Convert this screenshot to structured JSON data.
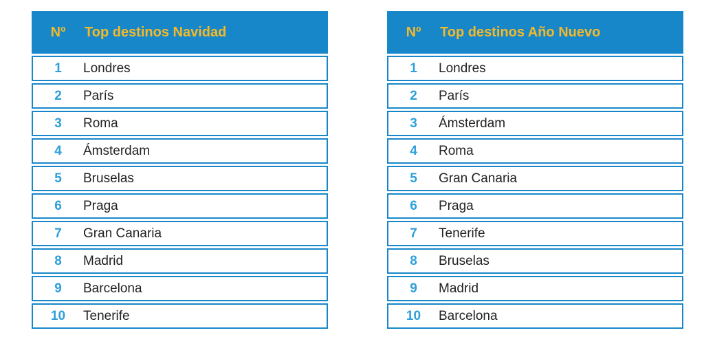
{
  "colors": {
    "header_background": "#1787c9",
    "header_text": "#f5b928",
    "row_border": "#1787c9",
    "rank_number": "#2d9fda",
    "city_text": "#222222",
    "page_background": "#ffffff"
  },
  "tables": [
    {
      "header": {
        "rank": "Nº",
        "title": "Top destinos Navidad"
      },
      "rows": [
        {
          "rank": "1",
          "city": "Londres"
        },
        {
          "rank": "2",
          "city": "París"
        },
        {
          "rank": "3",
          "city": "Roma"
        },
        {
          "rank": "4",
          "city": "Ámsterdam"
        },
        {
          "rank": "5",
          "city": "Bruselas"
        },
        {
          "rank": "6",
          "city": "Praga"
        },
        {
          "rank": "7",
          "city": "Gran Canaria"
        },
        {
          "rank": "8",
          "city": "Madrid"
        },
        {
          "rank": "9",
          "city": "Barcelona"
        },
        {
          "rank": "10",
          "city": "Tenerife"
        }
      ]
    },
    {
      "header": {
        "rank": "Nº",
        "title": "Top destinos Año Nuevo"
      },
      "rows": [
        {
          "rank": "1",
          "city": "Londres"
        },
        {
          "rank": "2",
          "city": "París"
        },
        {
          "rank": "3",
          "city": "Ámsterdam"
        },
        {
          "rank": "4",
          "city": "Roma"
        },
        {
          "rank": "5",
          "city": "Gran Canaria"
        },
        {
          "rank": "6",
          "city": "Praga"
        },
        {
          "rank": "7",
          "city": "Tenerife"
        },
        {
          "rank": "8",
          "city": "Bruselas"
        },
        {
          "rank": "9",
          "city": "Madrid"
        },
        {
          "rank": "10",
          "city": "Barcelona"
        }
      ]
    }
  ]
}
